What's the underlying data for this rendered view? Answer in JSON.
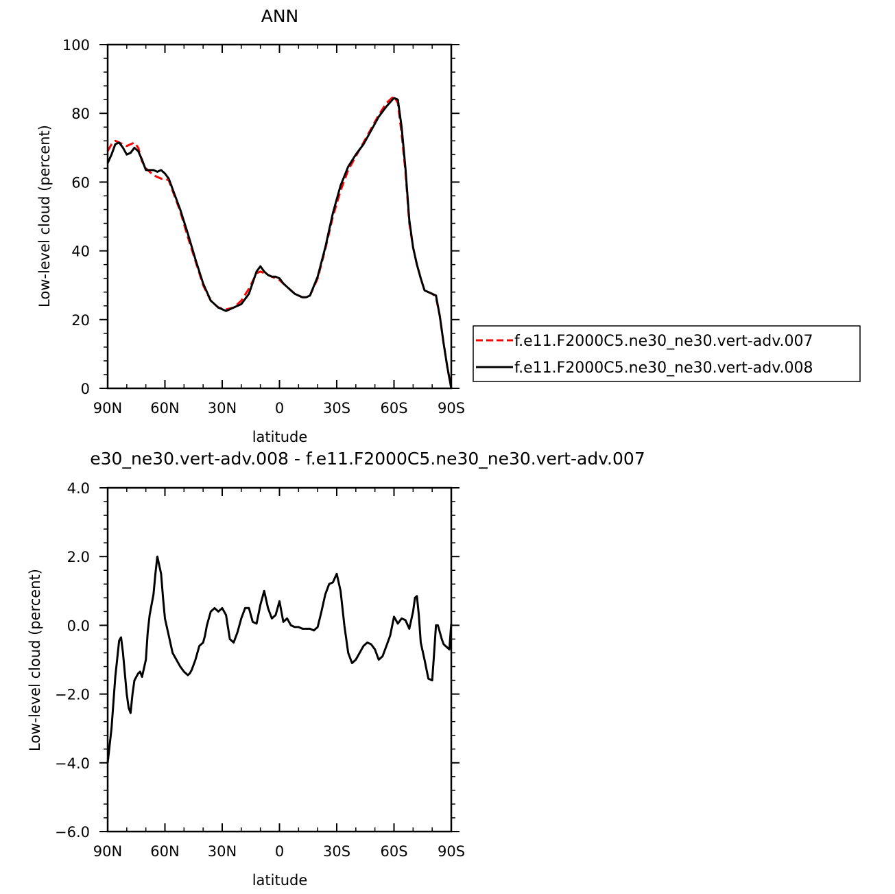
{
  "chart_data": [
    {
      "type": "line",
      "title": "ANN",
      "xlabel": "latitude",
      "ylabel": "Low-level cloud (percent)",
      "xlim": [
        90,
        -90
      ],
      "ylim": [
        0,
        100
      ],
      "x_ticks": [
        90,
        60,
        30,
        0,
        -30,
        -60,
        -90
      ],
      "x_tick_labels": [
        "90N",
        "60N",
        "30N",
        "0",
        "30S",
        "60S",
        "90S"
      ],
      "y_ticks": [
        0,
        20,
        40,
        60,
        80,
        100
      ],
      "y_tick_labels": [
        "0",
        "20",
        "40",
        "60",
        "80",
        "100"
      ],
      "legend_position": "right",
      "series": [
        {
          "name": "f.e11.F2000C5.ne30_ne30.vert-adv.007",
          "color": "#ff0000",
          "dash": "dashed",
          "x": [
            90,
            88,
            86,
            84,
            82,
            80,
            78,
            76,
            74,
            72,
            70,
            68,
            66,
            64,
            62,
            60,
            58,
            56,
            52,
            48,
            44,
            40,
            36,
            32,
            28,
            24,
            20,
            16,
            12,
            10,
            8,
            6,
            4,
            2,
            0,
            -2,
            -4,
            -6,
            -8,
            -10,
            -12,
            -14,
            -16,
            -20,
            -24,
            -28,
            -32,
            -36,
            -40,
            -44,
            -48,
            -52,
            -56,
            -60,
            -62,
            -64,
            -66,
            -68,
            -70,
            -72,
            -74,
            -76,
            -78,
            -80,
            -82,
            -84,
            -86,
            -88,
            -90
          ],
          "y": [
            69,
            71,
            72,
            71.5,
            71,
            70.5,
            71,
            71.5,
            70,
            66,
            64,
            63,
            62,
            61.5,
            61,
            61,
            60.5,
            57.5,
            51.5,
            44,
            37,
            30,
            25.5,
            23.5,
            23,
            23.5,
            25.5,
            29,
            33.5,
            34,
            33.5,
            33,
            32.5,
            32,
            31.5,
            30.5,
            29.5,
            28.5,
            27.5,
            27,
            26.5,
            26.5,
            27,
            32,
            40.5,
            50,
            57.5,
            63.5,
            67.5,
            71.5,
            75.5,
            79.5,
            83,
            85,
            83,
            74,
            63,
            48,
            41,
            36,
            32,
            28.5,
            28,
            27.5,
            26.5,
            21,
            13,
            6,
            0
          ]
        },
        {
          "name": "f.e11.F2000C5.ne30_ne30.vert-adv.008",
          "color": "#000000",
          "dash": "solid",
          "x": [
            90,
            88,
            86,
            84,
            82,
            80,
            78,
            76,
            74,
            72,
            70,
            68,
            66,
            64,
            62,
            60,
            58,
            56,
            52,
            48,
            44,
            40,
            36,
            32,
            28,
            24,
            20,
            16,
            12,
            10,
            8,
            6,
            4,
            2,
            0,
            -2,
            -4,
            -6,
            -8,
            -10,
            -12,
            -14,
            -16,
            -20,
            -24,
            -28,
            -32,
            -36,
            -40,
            -44,
            -48,
            -52,
            -56,
            -60,
            -62,
            -64,
            -66,
            -68,
            -70,
            -72,
            -74,
            -76,
            -78,
            -80,
            -82,
            -84,
            -86,
            -88,
            -90
          ],
          "y": [
            65.5,
            68,
            71,
            71.5,
            70,
            68,
            68.5,
            70,
            69,
            66.5,
            63.5,
            63.5,
            63.5,
            63,
            63.5,
            62.5,
            61,
            58,
            52,
            45,
            37.5,
            30.5,
            25.5,
            23.5,
            22.5,
            23.5,
            24.5,
            27.5,
            34,
            35.5,
            34,
            33,
            32.5,
            32.5,
            32,
            30.5,
            29.5,
            28.5,
            27.5,
            27,
            26.5,
            26.5,
            27,
            32.5,
            41,
            51,
            59,
            64.5,
            68,
            71,
            75,
            79,
            82,
            84.5,
            84,
            76,
            64,
            49,
            41,
            36,
            32,
            28.5,
            28,
            27.5,
            27,
            21,
            13,
            6,
            0
          ]
        }
      ]
    },
    {
      "type": "line",
      "title": "e30_ne30.vert-adv.008 - f.e11.F2000C5.ne30_ne30.vert-adv.007",
      "xlabel": "latitude",
      "ylabel": "Low-level cloud (percent)",
      "xlim": [
        90,
        -90
      ],
      "ylim": [
        -6,
        4
      ],
      "x_ticks": [
        90,
        60,
        30,
        0,
        -30,
        -60,
        -90
      ],
      "x_tick_labels": [
        "90N",
        "60N",
        "30N",
        "0",
        "30S",
        "60S",
        "90S"
      ],
      "y_ticks": [
        -6,
        -4,
        -2,
        0,
        2,
        4
      ],
      "y_tick_labels": [
        "−6.0",
        "−4.0",
        "−2.0",
        "0.0",
        "2.0",
        "4.0"
      ],
      "series": [
        {
          "color": "#000000",
          "dash": "solid",
          "x": [
            90,
            88,
            86,
            84,
            83,
            82,
            80,
            79,
            78,
            77,
            76,
            75,
            74,
            73,
            72,
            70,
            69,
            68,
            66,
            65,
            64,
            62,
            61,
            60,
            58,
            56,
            54,
            52,
            50,
            48,
            47,
            46,
            44,
            42,
            40,
            39,
            38,
            36,
            34,
            32,
            30,
            28,
            26,
            24,
            22,
            20,
            18,
            16,
            14,
            12,
            10,
            8,
            6,
            5,
            4,
            2,
            0,
            -2,
            -4,
            -6,
            -8,
            -10,
            -12,
            -14,
            -16,
            -18,
            -20,
            -22,
            -24,
            -26,
            -28,
            -30,
            -32,
            -34,
            -36,
            -38,
            -40,
            -42,
            -44,
            -46,
            -48,
            -50,
            -52,
            -54,
            -56,
            -58,
            -60,
            -62,
            -64,
            -66,
            -68,
            -70,
            -71,
            -72,
            -73,
            -74,
            -76,
            -78,
            -80,
            -81,
            -82,
            -83,
            -84,
            -85,
            -86,
            -87,
            -88,
            -89,
            -90
          ],
          "y": [
            -4.0,
            -3.0,
            -1.5,
            -0.45,
            -0.35,
            -0.8,
            -2.0,
            -2.4,
            -2.55,
            -2.0,
            -1.6,
            -1.5,
            -1.4,
            -1.35,
            -1.5,
            -1.0,
            -0.2,
            0.3,
            0.9,
            1.5,
            2.0,
            1.5,
            0.8,
            0.2,
            -0.3,
            -0.8,
            -1.0,
            -1.2,
            -1.35,
            -1.45,
            -1.4,
            -1.3,
            -1.0,
            -0.6,
            -0.5,
            -0.3,
            0.0,
            0.4,
            0.5,
            0.4,
            0.5,
            0.3,
            -0.4,
            -0.5,
            -0.2,
            0.2,
            0.5,
            0.5,
            0.1,
            0.05,
            0.6,
            1.0,
            0.5,
            0.35,
            0.2,
            0.3,
            0.7,
            0.1,
            0.2,
            0.0,
            -0.05,
            -0.05,
            -0.1,
            -0.1,
            -0.1,
            -0.15,
            -0.05,
            0.4,
            0.9,
            1.2,
            1.25,
            1.5,
            1.0,
            0.0,
            -0.8,
            -1.1,
            -1.0,
            -0.8,
            -0.6,
            -0.5,
            -0.55,
            -0.7,
            -1.0,
            -0.9,
            -0.6,
            -0.3,
            0.25,
            0.05,
            0.2,
            0.15,
            -0.1,
            0.4,
            0.8,
            0.85,
            0.3,
            -0.5,
            -1.0,
            -1.55,
            -1.6,
            -0.8,
            0.0,
            0.0,
            -0.2,
            -0.4,
            -0.55,
            -0.6,
            -0.65,
            -0.7,
            0.05
          ]
        }
      ]
    }
  ]
}
